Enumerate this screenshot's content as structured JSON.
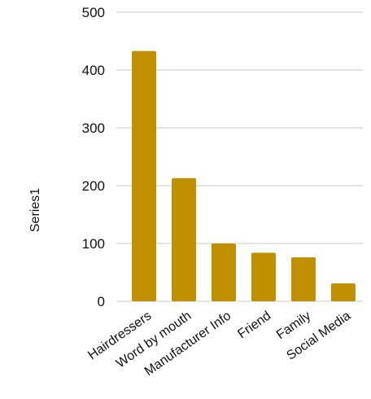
{
  "chart_data": {
    "type": "bar",
    "title": "",
    "xlabel": "",
    "ylabel": "Series1",
    "categories": [
      "Hairdressers",
      "Word by mouth",
      "Manufacturer Info",
      "Friend",
      "Family",
      "Social Media"
    ],
    "values": [
      433,
      213,
      100,
      84,
      76,
      31
    ],
    "ylim": [
      0,
      500
    ],
    "yticks": [
      "0",
      "100",
      "200",
      "300",
      "400",
      "500"
    ],
    "grid": true,
    "legend": "none",
    "bar_color": "#bf9000"
  }
}
